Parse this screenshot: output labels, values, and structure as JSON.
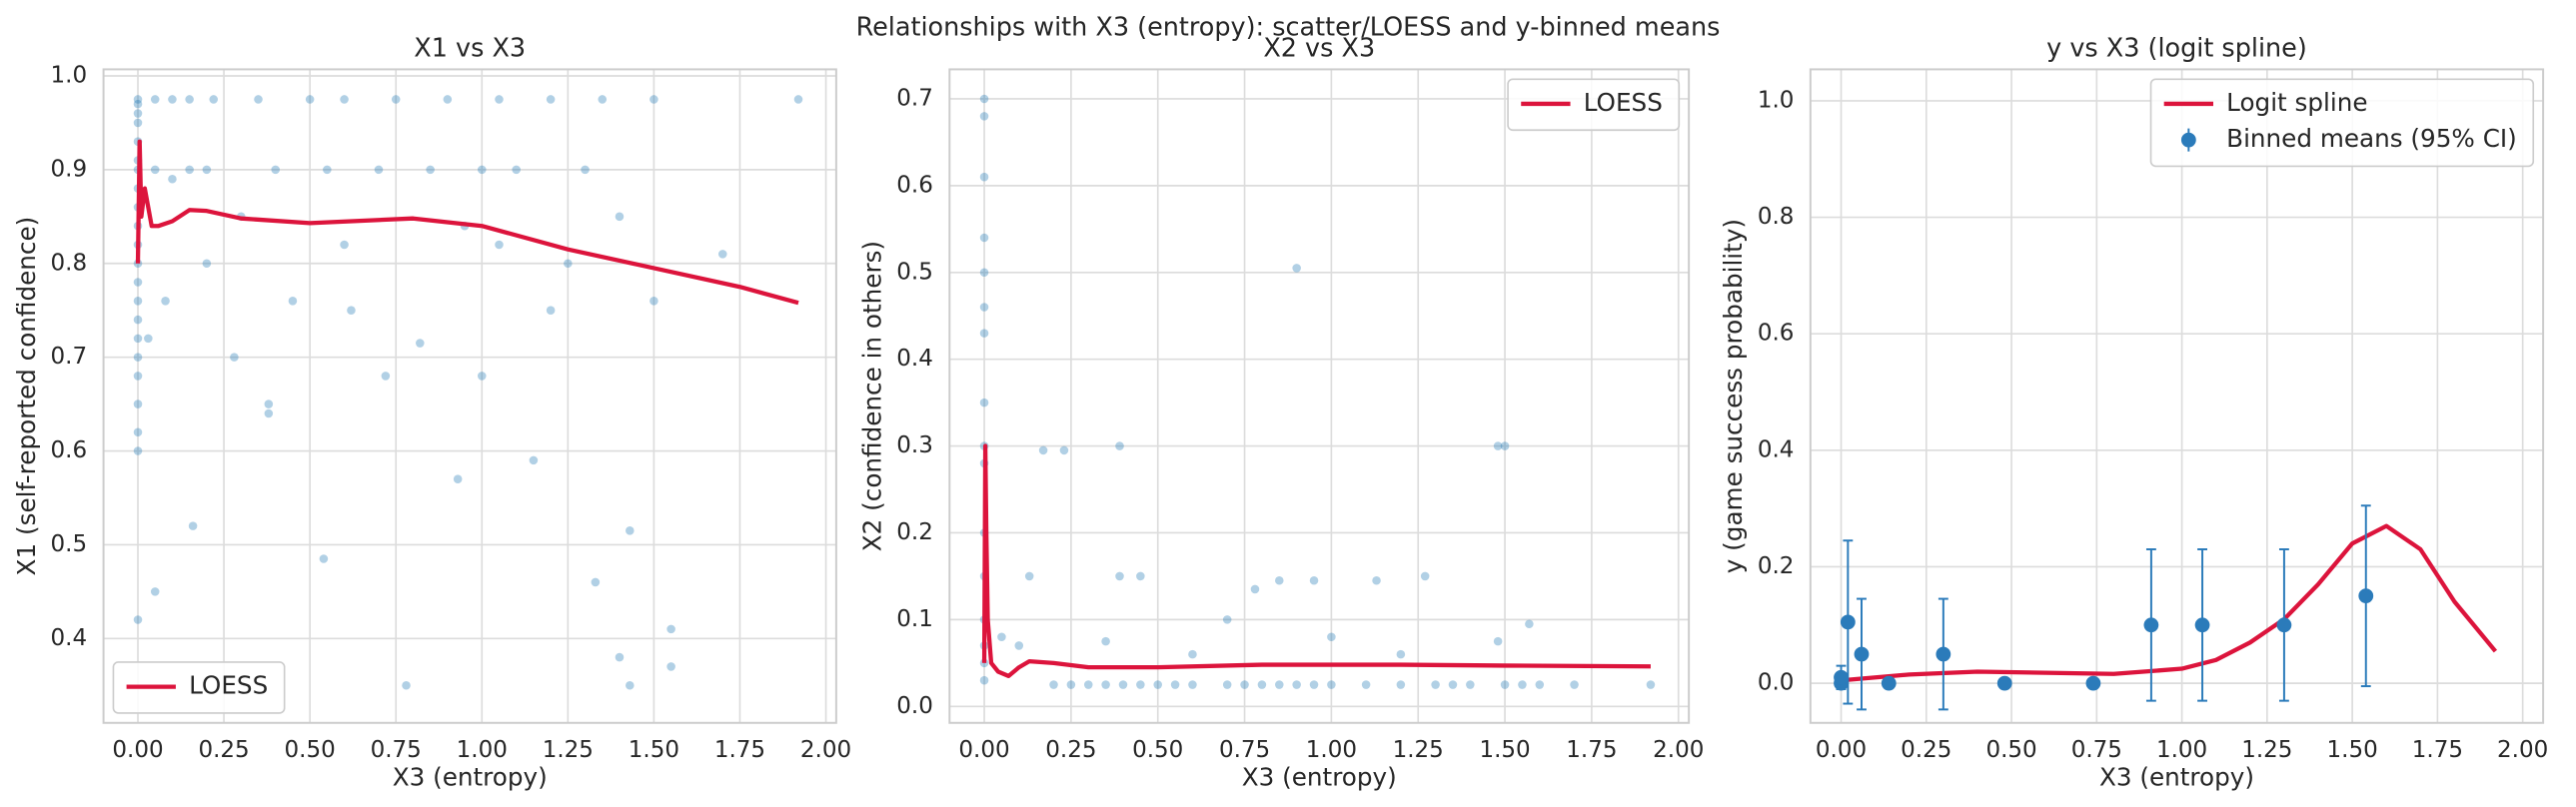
{
  "title": "Relationships with X3 (entropy): scatter/LOESS and y-binned means",
  "chart_data": [
    {
      "type": "scatter",
      "title": "X1 vs X3",
      "xlabel": "X3 (entropy)",
      "ylabel": "X1 (self-reported confidence)",
      "xlim": [
        -0.1,
        2.03
      ],
      "ylim": [
        0.31,
        1.007
      ],
      "grid": true,
      "legend": "lower left",
      "xticks": [
        {
          "value": 0,
          "label": "0.00"
        },
        {
          "value": 0.25,
          "label": "0.25"
        },
        {
          "value": 0.5,
          "label": "0.50"
        },
        {
          "value": 0.75,
          "label": "0.75"
        },
        {
          "value": 1,
          "label": "1.00"
        },
        {
          "value": 1.25,
          "label": "1.25"
        },
        {
          "value": 1.5,
          "label": "1.50"
        },
        {
          "value": 1.75,
          "label": "1.75"
        },
        {
          "value": 2,
          "label": "2.00"
        }
      ],
      "yticks": [
        0.4,
        0.5,
        0.6,
        0.7,
        0.8,
        0.9,
        {
          "value": 1,
          "label": "1.0"
        }
      ],
      "series": [
        {
          "type": "scatter",
          "color": "#1f77b4",
          "x": [
            0,
            0,
            0,
            0,
            0,
            0,
            0,
            0,
            0,
            0,
            0,
            0,
            0,
            0,
            0,
            0,
            0,
            0,
            0,
            0,
            0,
            0,
            0.05,
            0.1,
            0.15,
            0.22,
            0.35,
            0.5,
            0.6,
            0.75,
            0.9,
            1.05,
            1.2,
            1.35,
            1.5,
            1.92,
            0.05,
            0.1,
            0.15,
            0.2,
            0.4,
            0.55,
            0.7,
            0.85,
            1.0,
            1.1,
            1.3,
            0.03,
            0.05,
            0.08,
            0.16,
            0.28,
            0.38,
            0.38,
            0.45,
            0.54,
            0.62,
            0.72,
            0.78,
            0.82,
            0.93,
            1.0,
            1.15,
            1.2,
            1.33,
            1.4,
            1.43,
            1.43,
            1.55,
            1.55,
            1.7,
            1.5,
            1.25,
            0.95,
            0.6,
            0.3,
            0.2,
            1.05,
            1.4
          ],
          "values": [
            0.975,
            0.97,
            0.96,
            0.95,
            0.93,
            0.91,
            0.9,
            0.88,
            0.86,
            0.84,
            0.82,
            0.8,
            0.78,
            0.76,
            0.74,
            0.72,
            0.7,
            0.68,
            0.65,
            0.62,
            0.6,
            0.42,
            0.975,
            0.975,
            0.975,
            0.975,
            0.975,
            0.975,
            0.975,
            0.975,
            0.975,
            0.975,
            0.975,
            0.975,
            0.975,
            0.975,
            0.9,
            0.89,
            0.9,
            0.9,
            0.9,
            0.9,
            0.9,
            0.9,
            0.9,
            0.9,
            0.9,
            0.72,
            0.45,
            0.76,
            0.52,
            0.7,
            0.65,
            0.64,
            0.76,
            0.485,
            0.75,
            0.68,
            0.35,
            0.715,
            0.57,
            0.68,
            0.59,
            0.75,
            0.46,
            0.38,
            0.515,
            0.35,
            0.41,
            0.37,
            0.81,
            0.76,
            0.8,
            0.84,
            0.82,
            0.85,
            0.8,
            0.82,
            0.85
          ]
        },
        {
          "type": "line",
          "name": "LOESS",
          "color": "#dc143c",
          "x": [
            0,
            0.005,
            0.01,
            0.02,
            0.04,
            0.06,
            0.1,
            0.15,
            0.2,
            0.3,
            0.5,
            0.8,
            1.0,
            1.25,
            1.5,
            1.75,
            1.92
          ],
          "values": [
            0.8,
            0.93,
            0.85,
            0.88,
            0.84,
            0.84,
            0.845,
            0.857,
            0.856,
            0.848,
            0.843,
            0.848,
            0.84,
            0.815,
            0.795,
            0.775,
            0.758
          ]
        }
      ]
    },
    {
      "type": "scatter",
      "title": "X2 vs X3",
      "xlabel": "X3 (entropy)",
      "ylabel": "X2 (confidence in others)",
      "xlim": [
        -0.1,
        2.03
      ],
      "ylim": [
        -0.019,
        0.734
      ],
      "grid": true,
      "legend": "upper right",
      "xticks": [
        {
          "value": 0,
          "label": "0.00"
        },
        {
          "value": 0.25,
          "label": "0.25"
        },
        {
          "value": 0.5,
          "label": "0.50"
        },
        {
          "value": 0.75,
          "label": "0.75"
        },
        {
          "value": 1,
          "label": "1.00"
        },
        {
          "value": 1.25,
          "label": "1.25"
        },
        {
          "value": 1.5,
          "label": "1.50"
        },
        {
          "value": 1.75,
          "label": "1.75"
        },
        {
          "value": 2,
          "label": "2.00"
        }
      ],
      "yticks": [
        {
          "value": 0,
          "label": "0.0"
        },
        0.1,
        0.2,
        0.3,
        0.4,
        0.5,
        0.6,
        0.7
      ],
      "series": [
        {
          "type": "scatter",
          "color": "#1f77b4",
          "x": [
            0,
            0,
            0,
            0,
            0,
            0,
            0,
            0,
            0,
            0,
            0,
            0,
            0,
            0,
            0,
            0,
            0.05,
            0.1,
            0.17,
            0.23,
            0.39,
            0.39,
            0.45,
            0.13,
            0.35,
            0.7,
            0.78,
            0.85,
            0.9,
            0.95,
            1.0,
            1.13,
            1.27,
            1.48,
            1.5,
            1.57,
            1.48,
            1.2,
            0.6,
            0.2,
            0.25,
            0.3,
            0.35,
            0.4,
            0.45,
            0.5,
            0.55,
            0.6,
            0.7,
            0.75,
            0.8,
            0.85,
            0.9,
            0.95,
            1.0,
            1.1,
            1.2,
            1.3,
            1.35,
            1.4,
            1.5,
            1.55,
            1.6,
            1.7,
            1.92
          ],
          "values": [
            0.7,
            0.68,
            0.61,
            0.54,
            0.5,
            0.46,
            0.43,
            0.35,
            0.3,
            0.28,
            0.2,
            0.15,
            0.1,
            0.07,
            0.05,
            0.03,
            0.08,
            0.07,
            0.295,
            0.295,
            0.3,
            0.15,
            0.15,
            0.15,
            0.075,
            0.1,
            0.135,
            0.145,
            0.505,
            0.145,
            0.08,
            0.145,
            0.15,
            0.3,
            0.3,
            0.095,
            0.075,
            0.06,
            0.06,
            0.025,
            0.025,
            0.025,
            0.025,
            0.025,
            0.025,
            0.025,
            0.025,
            0.025,
            0.025,
            0.025,
            0.025,
            0.025,
            0.025,
            0.025,
            0.025,
            0.025,
            0.025,
            0.025,
            0.025,
            0.025,
            0.025,
            0.025,
            0.025,
            0.025,
            0.025
          ]
        },
        {
          "type": "line",
          "name": "LOESS",
          "color": "#dc143c",
          "x": [
            0,
            0.003,
            0.006,
            0.01,
            0.02,
            0.04,
            0.07,
            0.1,
            0.13,
            0.2,
            0.3,
            0.5,
            0.8,
            1.2,
            1.5,
            1.92
          ],
          "values": [
            0.05,
            0.3,
            0.2,
            0.1,
            0.05,
            0.04,
            0.035,
            0.045,
            0.052,
            0.05,
            0.045,
            0.045,
            0.048,
            0.048,
            0.047,
            0.046
          ]
        }
      ]
    },
    {
      "type": "errorbar",
      "title": "y vs X3 (logit spline)",
      "xlabel": "X3 (entropy)",
      "ylabel": "y (game success probability)",
      "xlim": [
        -0.09,
        2.06
      ],
      "ylim": [
        -0.068,
        1.054
      ],
      "grid": true,
      "legend": "upper right",
      "xticks": [
        {
          "value": 0,
          "label": "0.00"
        },
        {
          "value": 0.25,
          "label": "0.25"
        },
        {
          "value": 0.5,
          "label": "0.50"
        },
        {
          "value": 0.75,
          "label": "0.75"
        },
        {
          "value": 1,
          "label": "1.00"
        },
        {
          "value": 1.25,
          "label": "1.25"
        },
        {
          "value": 1.5,
          "label": "1.50"
        },
        {
          "value": 1.75,
          "label": "1.75"
        },
        {
          "value": 2,
          "label": "2.00"
        }
      ],
      "yticks": [
        {
          "value": 0,
          "label": "0.0"
        },
        0.2,
        0.4,
        0.6,
        0.8,
        {
          "value": 1,
          "label": "1.0"
        }
      ],
      "series": [
        {
          "type": "line",
          "name": "Logit spline",
          "color": "#dc143c",
          "x": [
            0,
            0.2,
            0.4,
            0.6,
            0.8,
            1.0,
            1.1,
            1.2,
            1.3,
            1.4,
            1.5,
            1.6,
            1.7,
            1.8,
            1.92
          ],
          "values": [
            0.005,
            0.015,
            0.02,
            0.018,
            0.016,
            0.025,
            0.04,
            0.07,
            0.11,
            0.17,
            0.24,
            0.27,
            0.23,
            0.14,
            0.055
          ]
        },
        {
          "type": "errorbar",
          "name": "Binned means (95% CI)",
          "color": "#2b7bba",
          "x": [
            0,
            0,
            0.02,
            0.06,
            0.14,
            0.3,
            0.48,
            0.74,
            0.91,
            1.06,
            1.3,
            1.54
          ],
          "values": [
            0,
            0.01,
            0.105,
            0.05,
            0,
            0.05,
            0,
            0,
            0.1,
            0.1,
            0.1,
            0.15
          ],
          "errors": [
            0.01,
            0.02,
            0.14,
            0.095,
            0,
            0.095,
            0,
            0,
            0.13,
            0.13,
            0.13,
            0.155
          ]
        }
      ]
    }
  ]
}
